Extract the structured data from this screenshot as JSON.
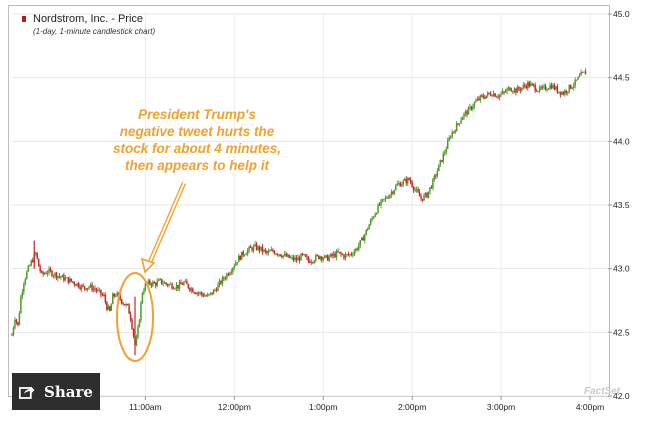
{
  "chart_data": {
    "type": "candlestick",
    "title": "Nordstrom, Inc. - Price",
    "subtitle": "(1-day, 1-minute candlestick chart)",
    "x_ticks": [
      "11:00am",
      "12:00pm",
      "1:00pm",
      "2:00pm",
      "3:00pm",
      "4:00pm"
    ],
    "x_tick_minutes": [
      90,
      150,
      210,
      270,
      330,
      390
    ],
    "x_range_minutes": [
      0,
      390
    ],
    "y_ticks": [
      "42.0",
      "42.5",
      "43.0",
      "43.5",
      "44.0",
      "44.5",
      "45.0"
    ],
    "ylim": [
      42.0,
      45.0
    ],
    "y_axis_side": "right",
    "grid": true,
    "up_color": "#4f9a2c",
    "down_color": "#c62828",
    "series": [
      {
        "values": [
          [
            0,
            42.48
          ],
          [
            2,
            42.62
          ],
          [
            4,
            42.55
          ],
          [
            6,
            42.78
          ],
          [
            8,
            42.9
          ],
          [
            10,
            42.97
          ],
          [
            13,
            43.05
          ],
          [
            16,
            43.12
          ],
          [
            18,
            43.02
          ],
          [
            20,
            42.95
          ],
          [
            24,
            42.98
          ],
          [
            28,
            42.96
          ],
          [
            32,
            42.94
          ],
          [
            36,
            42.92
          ],
          [
            40,
            42.9
          ],
          [
            44,
            42.88
          ],
          [
            48,
            42.85
          ],
          [
            52,
            42.86
          ],
          [
            56,
            42.84
          ],
          [
            60,
            42.8
          ],
          [
            62,
            42.78
          ],
          [
            64,
            42.7
          ],
          [
            66,
            42.66
          ],
          [
            68,
            42.78
          ],
          [
            70,
            42.8
          ],
          [
            72,
            42.78
          ],
          [
            74,
            42.75
          ],
          [
            76,
            42.72
          ],
          [
            78,
            42.7
          ],
          [
            80,
            42.62
          ],
          [
            82,
            42.48
          ],
          [
            83,
            42.4
          ],
          [
            84,
            42.44
          ],
          [
            85,
            42.52
          ],
          [
            86,
            42.62
          ],
          [
            87,
            42.72
          ],
          [
            88,
            42.82
          ],
          [
            90,
            42.87
          ],
          [
            93,
            42.89
          ],
          [
            96,
            42.88
          ],
          [
            100,
            42.9
          ],
          [
            104,
            42.88
          ],
          [
            108,
            42.87
          ],
          [
            112,
            42.86
          ],
          [
            116,
            42.89
          ],
          [
            120,
            42.85
          ],
          [
            124,
            42.82
          ],
          [
            128,
            42.8
          ],
          [
            132,
            42.78
          ],
          [
            136,
            42.82
          ],
          [
            140,
            42.88
          ],
          [
            144,
            42.94
          ],
          [
            148,
            43.0
          ],
          [
            152,
            43.07
          ],
          [
            156,
            43.12
          ],
          [
            160,
            43.15
          ],
          [
            164,
            43.17
          ],
          [
            168,
            43.15
          ],
          [
            172,
            43.12
          ],
          [
            176,
            43.14
          ],
          [
            180,
            43.12
          ],
          [
            184,
            43.1
          ],
          [
            188,
            43.08
          ],
          [
            192,
            43.07
          ],
          [
            196,
            43.1
          ],
          [
            200,
            43.06
          ],
          [
            204,
            43.08
          ],
          [
            208,
            43.1
          ],
          [
            212,
            43.08
          ],
          [
            216,
            43.1
          ],
          [
            220,
            43.12
          ],
          [
            224,
            43.1
          ],
          [
            228,
            43.11
          ],
          [
            232,
            43.15
          ],
          [
            236,
            43.22
          ],
          [
            240,
            43.32
          ],
          [
            244,
            43.42
          ],
          [
            248,
            43.5
          ],
          [
            252,
            43.55
          ],
          [
            256,
            43.6
          ],
          [
            260,
            43.66
          ],
          [
            264,
            43.68
          ],
          [
            268,
            43.7
          ],
          [
            272,
            43.62
          ],
          [
            276,
            43.55
          ],
          [
            280,
            43.58
          ],
          [
            284,
            43.68
          ],
          [
            288,
            43.8
          ],
          [
            292,
            43.92
          ],
          [
            296,
            44.05
          ],
          [
            300,
            44.12
          ],
          [
            304,
            44.2
          ],
          [
            308,
            44.24
          ],
          [
            312,
            44.3
          ],
          [
            316,
            44.34
          ],
          [
            320,
            44.36
          ],
          [
            324,
            44.38
          ],
          [
            328,
            44.36
          ],
          [
            332,
            44.38
          ],
          [
            336,
            44.42
          ],
          [
            340,
            44.4
          ],
          [
            344,
            44.42
          ],
          [
            348,
            44.45
          ],
          [
            352,
            44.43
          ],
          [
            356,
            44.4
          ],
          [
            360,
            44.42
          ],
          [
            364,
            44.44
          ],
          [
            368,
            44.4
          ],
          [
            372,
            44.38
          ],
          [
            376,
            44.42
          ],
          [
            380,
            44.46
          ],
          [
            384,
            44.52
          ],
          [
            387,
            44.54
          ]
        ]
      }
    ]
  },
  "annotation_lines": [
    "President Trump's",
    "negative tweet hurts the",
    "stock for about 4 minutes,",
    "then appears to help it"
  ],
  "annotation_color": "#f2a12e",
  "share": {
    "label": "Share",
    "icon": "share-icon"
  },
  "watermark": "FactSet"
}
